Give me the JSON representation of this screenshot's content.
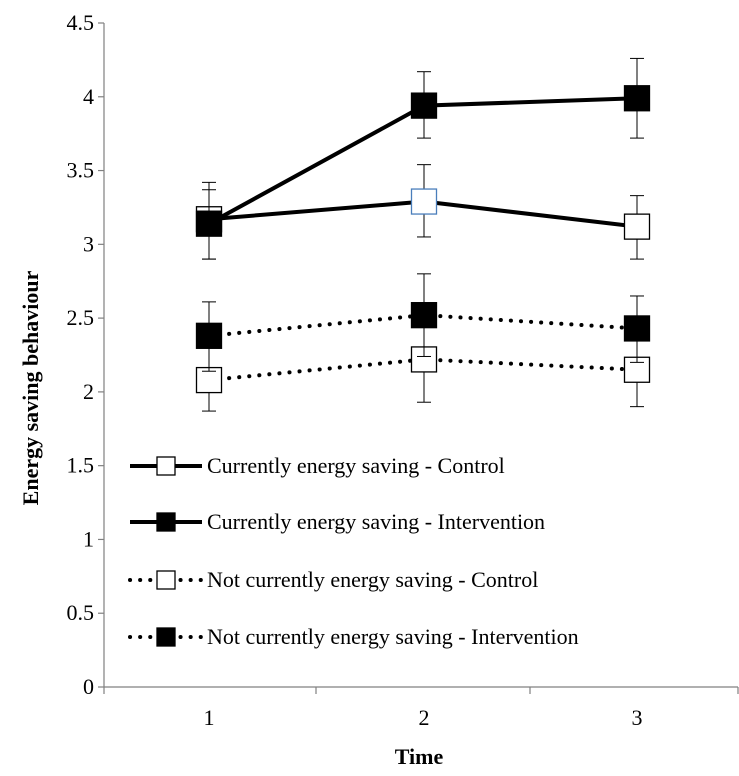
{
  "chart_data": {
    "type": "line",
    "xlabel": "Time",
    "ylabel": "Energy saving behaviour",
    "x": [
      1,
      2,
      3
    ],
    "x_tick_labels": [
      "1",
      "2",
      "3"
    ],
    "ylim": [
      0,
      4.5
    ],
    "y_ticks": [
      0,
      0.5,
      1,
      1.5,
      2,
      2.5,
      3,
      3.5,
      4,
      4.5
    ],
    "y_tick_labels": [
      "0",
      "0.5",
      "1",
      "1.5",
      "2",
      "2.5",
      "3",
      "3.5",
      "4",
      "4.5"
    ],
    "grid": false,
    "legend_placement": "lower-left",
    "series": [
      {
        "name": "Currently energy saving - Control",
        "line_style": "solid",
        "marker_fill": "#ffffff",
        "values": [
          3.17,
          3.29,
          3.12
        ],
        "error_low": [
          2.9,
          3.05,
          2.9
        ],
        "error_high": [
          3.42,
          3.54,
          3.33
        ]
      },
      {
        "name": "Currently energy saving - Intervention",
        "line_style": "solid",
        "marker_fill": "#000000",
        "values": [
          3.14,
          3.94,
          3.99
        ],
        "error_low": [
          2.9,
          3.72,
          3.72
        ],
        "error_high": [
          3.37,
          4.17,
          4.26
        ]
      },
      {
        "name": "Not currently energy saving - Control",
        "line_style": "dotted",
        "marker_fill": "#ffffff",
        "values": [
          2.08,
          2.22,
          2.15
        ],
        "error_low": [
          1.87,
          1.93,
          1.9
        ],
        "error_high": [
          2.3,
          2.51,
          2.4
        ]
      },
      {
        "name": "Not currently energy saving - Intervention",
        "line_style": "dotted",
        "marker_fill": "#000000",
        "values": [
          2.38,
          2.52,
          2.43
        ],
        "error_low": [
          2.14,
          2.24,
          2.2
        ],
        "error_high": [
          2.61,
          2.8,
          2.65
        ]
      }
    ],
    "colors": {
      "line": "#000000",
      "axis": "#808080",
      "highlight_marker_edge": "#4a7ebb"
    }
  }
}
